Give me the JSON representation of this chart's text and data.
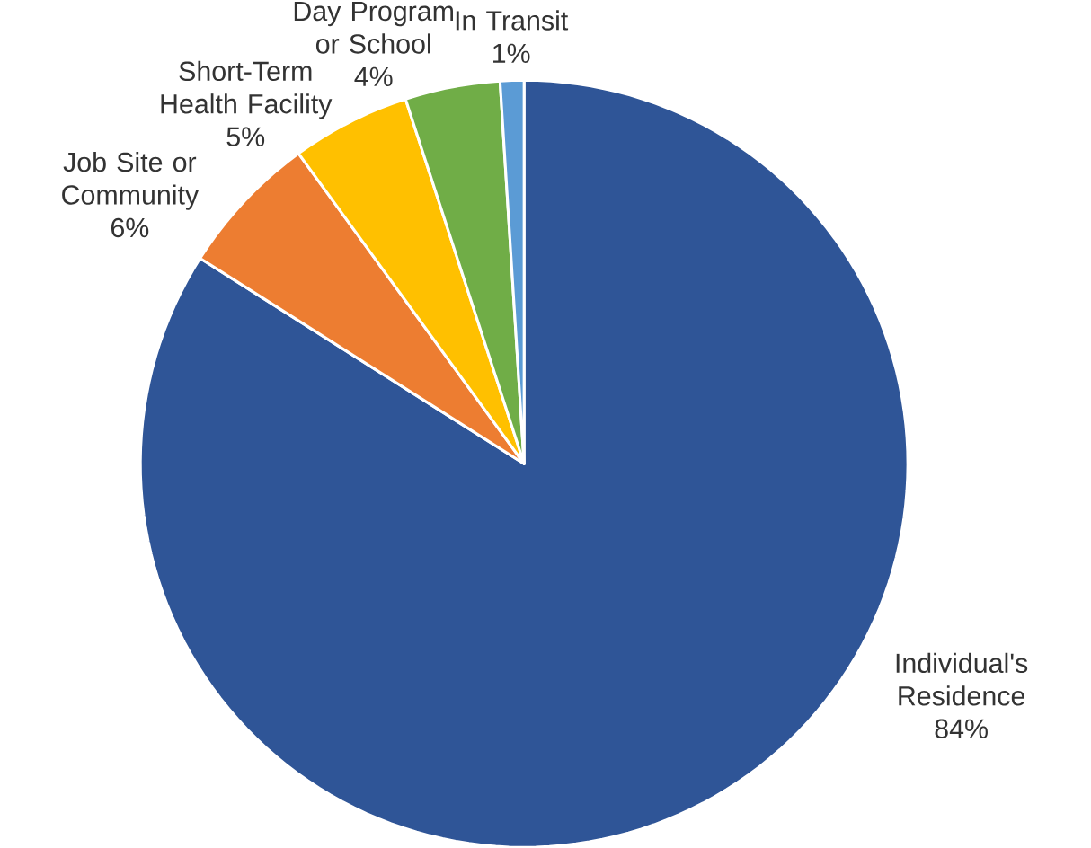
{
  "chart_data": {
    "type": "pie",
    "categories": [
      "Individual's Residence",
      "Job Site or Community",
      "Short-Term Health Facility",
      "Day Program or School",
      "In Transit"
    ],
    "values": [
      84,
      6,
      5,
      4,
      1
    ],
    "value_labels": [
      "84%",
      "6%",
      "5%",
      "4%",
      "1%"
    ],
    "colors": [
      "#2f5597",
      "#ed7d31",
      "#ffc000",
      "#70ad47",
      "#5b9bd5"
    ]
  }
}
